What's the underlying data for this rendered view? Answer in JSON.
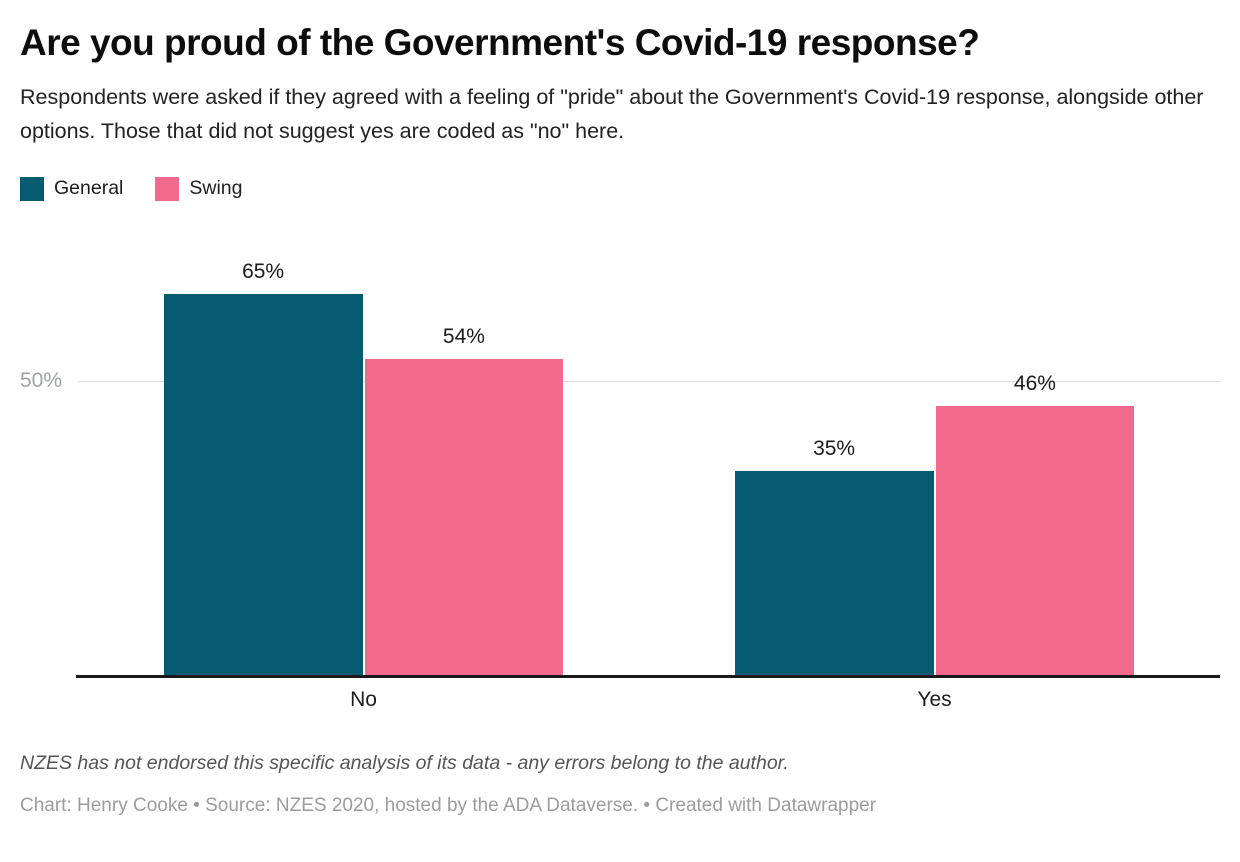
{
  "header": {
    "title": "Are you proud of the Government's Covid-19 response?",
    "subtitle": "Respondents were asked if they agreed with a feeling of \"pride\" about the Government's Covid-19 response, alongside other options. Those that did not suggest yes are coded as \"no\" here."
  },
  "chart_data": {
    "type": "bar",
    "title": "Are you proud of the Government's Covid-19 response?",
    "categories": [
      "No",
      "Yes"
    ],
    "series": [
      {
        "name": "General",
        "color": "#065b72",
        "values": [
          65,
          35
        ]
      },
      {
        "name": "Swing",
        "color": "#f1698c",
        "values": [
          54,
          46
        ]
      }
    ],
    "value_suffix": "%",
    "xlabel": "",
    "ylabel": "",
    "ylim": [
      0,
      73
    ],
    "gridlines": [
      {
        "value": 50,
        "label": "50%"
      }
    ],
    "legend_position": "top-left",
    "grid": "single-horizontal-gridline",
    "axis_color": "#1a1a1a",
    "gridline_color": "#dddddd",
    "tick_label_color": "#9fa3a6"
  },
  "footer": {
    "note": "NZES has not endorsed this specific analysis of its data - any errors belong to the author.",
    "byline": "Chart: Henry Cooke • Source: NZES 2020, hosted by the ADA Dataverse. • Created with Datawrapper"
  }
}
